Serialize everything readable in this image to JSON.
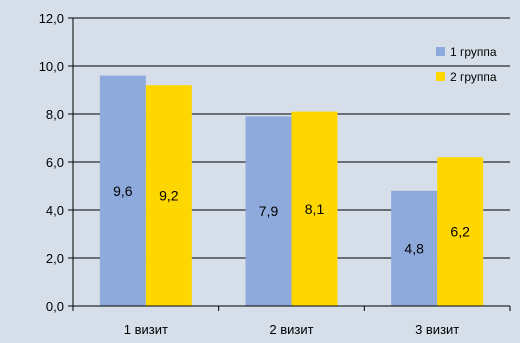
{
  "chart_data": {
    "type": "bar",
    "categories": [
      "1 визит",
      "2 визит",
      "3 визит"
    ],
    "series": [
      {
        "name": "1 группа",
        "values": [
          9.6,
          7.9,
          4.8
        ],
        "labels": [
          "9,6",
          "7,9",
          "4,8"
        ],
        "color": "#8ea9db"
      },
      {
        "name": "2 группа",
        "values": [
          9.2,
          8.1,
          6.2
        ],
        "labels": [
          "9,2",
          "8,1",
          "6,2"
        ],
        "color": "#ffd700"
      }
    ],
    "yticks": [
      0,
      2,
      4,
      6,
      8,
      10,
      12
    ],
    "ytick_labels": [
      "0,0",
      "2,0",
      "4,0",
      "6,0",
      "8,0",
      "10,0",
      "12,0"
    ],
    "ylim": [
      0,
      12
    ],
    "grid": true,
    "legend_position": "right",
    "background_color": "#d6dfe9",
    "axis_color": "#000000"
  }
}
